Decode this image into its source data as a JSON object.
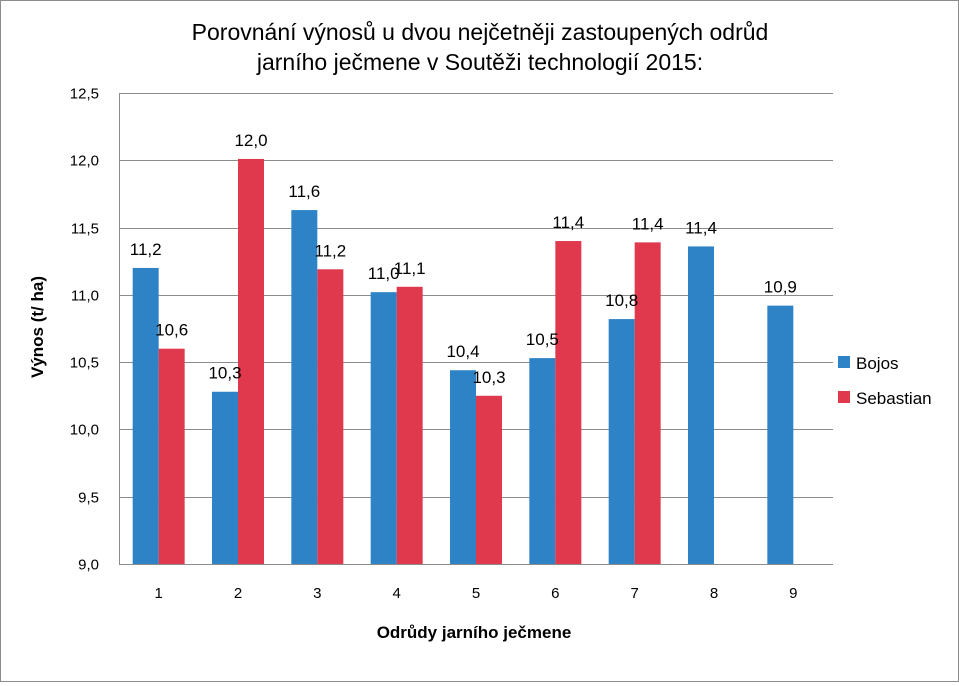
{
  "chart_data": {
    "type": "bar",
    "title_lines": [
      "Porovnání výnosů u dvou nejčetněji zastoupených odrůd",
      "jarního ječmene v Soutěži technologií 2015:"
    ],
    "xlabel": "Odrůdy jarního ječmene",
    "ylabel": "Výnos (t/ ha)",
    "ylim": [
      9.0,
      12.5
    ],
    "y_ticks": [
      "9,0",
      "9,5",
      "10,0",
      "10,5",
      "11,0",
      "11,5",
      "12,0",
      "12,5"
    ],
    "y_tick_values": [
      9.0,
      9.5,
      10.0,
      10.5,
      11.0,
      11.5,
      12.0,
      12.5
    ],
    "categories": [
      "1",
      "2",
      "3",
      "4",
      "5",
      "6",
      "7",
      "8",
      "9"
    ],
    "series": [
      {
        "name": "Bojos",
        "color": "#2e83c6",
        "values": [
          11.2,
          10.28,
          11.63,
          11.02,
          10.44,
          10.53,
          10.82,
          11.36,
          10.92
        ],
        "labels": [
          "11,2",
          "10,3",
          "11,6",
          "11,0",
          "10,4",
          "10,5",
          "10,8",
          "11,4",
          "10,9"
        ]
      },
      {
        "name": "Sebastian",
        "color": "#e0394e",
        "values": [
          10.6,
          12.01,
          11.19,
          11.06,
          10.25,
          11.4,
          11.39,
          null,
          null
        ],
        "labels": [
          "10,6",
          "12,0",
          "11,2",
          "11,1",
          "10,3",
          "11,4",
          "11,4",
          null,
          null
        ]
      }
    ],
    "grid": true,
    "legend_position": "right"
  }
}
